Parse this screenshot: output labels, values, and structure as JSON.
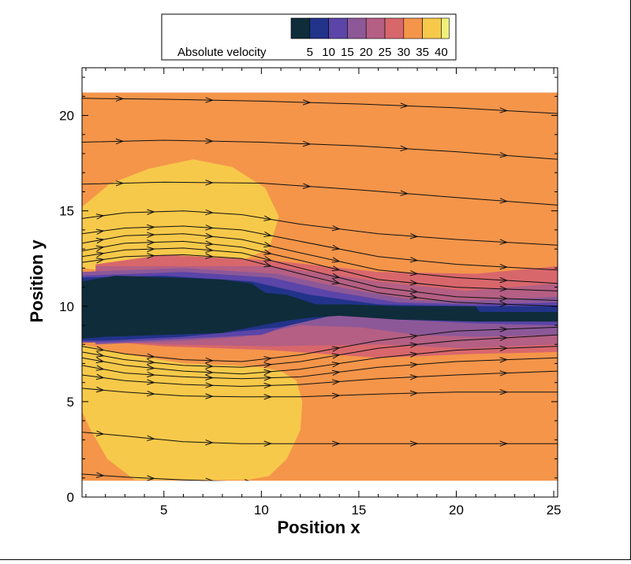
{
  "chart_data": {
    "type": "contour",
    "xlabel": "Position x",
    "ylabel": "Position y",
    "xlim": [
      0.8,
      25.2
    ],
    "ylim": [
      0,
      22.5
    ],
    "xticks": [
      5,
      10,
      15,
      20,
      25
    ],
    "yticks": [
      0,
      5,
      10,
      15,
      20
    ],
    "field_extent": {
      "x": [
        0.8,
        25.2
      ],
      "y": [
        0.85,
        21.2
      ]
    },
    "colorbar": {
      "title": "Absolute velocity",
      "tick_labels": [
        "5",
        "10",
        "15",
        "20",
        "25",
        "30",
        "35",
        "40"
      ],
      "colors": [
        "#0f2c3b",
        "#22338a",
        "#5b45a8",
        "#8d5898",
        "#b45f83",
        "#d8676c",
        "#f4954a",
        "#f7c94a",
        "#eef07a"
      ]
    },
    "regions": [
      {
        "level": "30-35",
        "color": "#f4954a",
        "polygon": [
          [
            0.8,
            0.85
          ],
          [
            25.2,
            0.85
          ],
          [
            25.2,
            21.2
          ],
          [
            0.8,
            21.2
          ]
        ]
      },
      {
        "level": "35-40",
        "color": "#f7c94a",
        "polygon": [
          [
            0.8,
            15.2
          ],
          [
            2.2,
            16.4
          ],
          [
            4.2,
            17.2
          ],
          [
            6.5,
            17.7
          ],
          [
            8.5,
            17.3
          ],
          [
            10.2,
            16.2
          ],
          [
            10.9,
            14.7
          ],
          [
            10.4,
            13
          ],
          [
            8.5,
            12.2
          ],
          [
            5,
            11.8
          ],
          [
            2.5,
            11.8
          ],
          [
            0.8,
            12
          ]
        ]
      },
      {
        "level": "35-40",
        "color": "#f7c94a",
        "polygon": [
          [
            0.8,
            8
          ],
          [
            3,
            7.5
          ],
          [
            6,
            7
          ],
          [
            8.5,
            6.9
          ],
          [
            10,
            6.8
          ],
          [
            11,
            6.6
          ],
          [
            11.8,
            6.1
          ],
          [
            12.1,
            5
          ],
          [
            12,
            3.5
          ],
          [
            11.3,
            2
          ],
          [
            10.4,
            1.1
          ],
          [
            9.3,
            0.9
          ],
          [
            3.5,
            0.9
          ],
          [
            2.1,
            2
          ],
          [
            1.2,
            3.6
          ],
          [
            0.8,
            4.5
          ]
        ]
      },
      {
        "level": "25-30",
        "color": "#d8676c",
        "polygon": [
          [
            5,
            12.7
          ],
          [
            10.5,
            12.4
          ],
          [
            16,
            11.8
          ],
          [
            21,
            11.7
          ],
          [
            25.2,
            12.1
          ],
          [
            25.2,
            7.6
          ],
          [
            21,
            7.5
          ],
          [
            16,
            7.3
          ],
          [
            10.5,
            7.7
          ],
          [
            5,
            7.9
          ],
          [
            1.5,
            8.2
          ],
          [
            1.5,
            12.2
          ]
        ]
      },
      {
        "level": "20-25",
        "color": "#b45f83",
        "polygon": [
          [
            1.5,
            12.1
          ],
          [
            10.5,
            12.1
          ],
          [
            16,
            11.3
          ],
          [
            20.5,
            10.8
          ],
          [
            25.2,
            11.2
          ],
          [
            25.2,
            8
          ],
          [
            20.5,
            7.8
          ],
          [
            16,
            8
          ],
          [
            10.5,
            7.9
          ],
          [
            5,
            8
          ],
          [
            1.5,
            8.2
          ]
        ]
      },
      {
        "level": "15-20",
        "color": "#8d5898",
        "polygon": [
          [
            0.8,
            11.8
          ],
          [
            6,
            12
          ],
          [
            10.8,
            11.7
          ],
          [
            14.5,
            10.9
          ],
          [
            18,
            10.3
          ],
          [
            21,
            10.3
          ],
          [
            25.2,
            10.5
          ],
          [
            25.2,
            8.5
          ],
          [
            21,
            8.4
          ],
          [
            18,
            8.5
          ],
          [
            15,
            8.9
          ],
          [
            12,
            9
          ],
          [
            9,
            8.4
          ],
          [
            6,
            8.2
          ],
          [
            1.5,
            8
          ]
        ]
      },
      {
        "level": "10-15",
        "color": "#5b45a8",
        "polygon": [
          [
            0.8,
            11.6
          ],
          [
            6,
            11.8
          ],
          [
            10.5,
            11.5
          ],
          [
            13.5,
            10.8
          ],
          [
            17,
            10.2
          ],
          [
            21,
            10.1
          ],
          [
            25.2,
            10.2
          ],
          [
            25.2,
            9
          ],
          [
            21,
            9.1
          ],
          [
            17,
            9.3
          ],
          [
            14,
            9.6
          ],
          [
            12,
            9.2
          ],
          [
            10,
            8.5
          ],
          [
            6,
            8.3
          ],
          [
            2,
            8.1
          ],
          [
            0.8,
            8.1
          ]
        ]
      },
      {
        "level": "5-10",
        "color": "#22338a",
        "polygon": [
          [
            0.8,
            11.5
          ],
          [
            5,
            11.6
          ],
          [
            9.5,
            11.3
          ],
          [
            12.5,
            10.6
          ],
          [
            16,
            10.1
          ],
          [
            21,
            10.0
          ],
          [
            25.2,
            10.0
          ],
          [
            25.2,
            9.2
          ],
          [
            21,
            9.3
          ],
          [
            17,
            9.4
          ],
          [
            14,
            9.6
          ],
          [
            11,
            8.9
          ],
          [
            6,
            8.4
          ],
          [
            2,
            8.2
          ],
          [
            0.8,
            8.2
          ]
        ]
      },
      {
        "level": "0-5",
        "color": "#0f2c3b",
        "polygon": [
          [
            0.8,
            11.3
          ],
          [
            2.5,
            11.6
          ],
          [
            5.5,
            11.5
          ],
          [
            8,
            11.4
          ],
          [
            9.5,
            11.2
          ],
          [
            10.2,
            10.7
          ],
          [
            11.3,
            10.6
          ],
          [
            12.2,
            10.3
          ],
          [
            12.8,
            10.1
          ],
          [
            14.5,
            10.1
          ],
          [
            17,
            10.0
          ],
          [
            21,
            10.0
          ],
          [
            21.2,
            9.7
          ],
          [
            25.2,
            9.7
          ],
          [
            25.2,
            9.2
          ],
          [
            21,
            9.2
          ],
          [
            17,
            9.3
          ],
          [
            14,
            9.5
          ],
          [
            12.5,
            9.4
          ],
          [
            11,
            9.2
          ],
          [
            9.5,
            8.9
          ],
          [
            8,
            8.6
          ],
          [
            5,
            8.5
          ],
          [
            2,
            8.4
          ],
          [
            0.8,
            8.3
          ]
        ]
      }
    ],
    "streamlines": [
      {
        "points": [
          [
            0.8,
            20.9
          ],
          [
            5,
            20.85
          ],
          [
            10,
            20.75
          ],
          [
            15,
            20.6
          ],
          [
            20,
            20.4
          ],
          [
            25.2,
            20.1
          ]
        ]
      },
      {
        "points": [
          [
            0.8,
            18.6
          ],
          [
            5,
            18.7
          ],
          [
            10,
            18.6
          ],
          [
            15,
            18.4
          ],
          [
            20,
            18.1
          ],
          [
            25.2,
            17.7
          ]
        ]
      },
      {
        "points": [
          [
            0.8,
            16.4
          ],
          [
            5,
            16.5
          ],
          [
            10,
            16.45
          ],
          [
            15,
            16.1
          ],
          [
            20,
            15.7
          ],
          [
            25.2,
            15.3
          ]
        ]
      },
      {
        "points": [
          [
            0.8,
            14.6
          ],
          [
            3,
            14.9
          ],
          [
            6,
            15.0
          ],
          [
            9,
            14.8
          ],
          [
            12,
            14.3
          ],
          [
            16,
            13.8
          ],
          [
            20,
            13.5
          ],
          [
            25.2,
            13.2
          ]
        ]
      },
      {
        "points": [
          [
            0.8,
            13.8
          ],
          [
            3,
            14.1
          ],
          [
            6,
            14.2
          ],
          [
            9,
            14.0
          ],
          [
            12,
            13.4
          ],
          [
            16,
            12.6
          ],
          [
            20,
            12.2
          ],
          [
            25.2,
            11.9
          ]
        ]
      },
      {
        "points": [
          [
            0.8,
            13.3
          ],
          [
            3,
            13.7
          ],
          [
            6,
            13.8
          ],
          [
            9,
            13.5
          ],
          [
            12,
            12.8
          ],
          [
            16,
            11.9
          ],
          [
            20,
            11.5
          ],
          [
            25.2,
            11.2
          ]
        ]
      },
      {
        "points": [
          [
            0.8,
            12.9
          ],
          [
            3,
            13.3
          ],
          [
            6,
            13.4
          ],
          [
            9,
            13.1
          ],
          [
            12,
            12.4
          ],
          [
            16,
            11.4
          ],
          [
            20,
            11.0
          ],
          [
            25.2,
            10.8
          ]
        ]
      },
      {
        "points": [
          [
            0.8,
            12.6
          ],
          [
            3,
            12.95
          ],
          [
            6,
            13.05
          ],
          [
            9,
            12.8
          ],
          [
            12,
            12.0
          ],
          [
            16,
            11.0
          ],
          [
            20,
            10.5
          ],
          [
            25.2,
            10.3
          ]
        ]
      },
      {
        "points": [
          [
            0.8,
            12.3
          ],
          [
            3,
            12.6
          ],
          [
            6,
            12.7
          ],
          [
            9,
            12.5
          ],
          [
            12,
            11.7
          ],
          [
            16,
            10.7
          ],
          [
            20,
            10.2
          ],
          [
            25.2,
            10.0
          ]
        ]
      },
      {
        "points": [
          [
            0.8,
            7.9
          ],
          [
            3,
            7.5
          ],
          [
            6,
            7.2
          ],
          [
            9,
            7.1
          ],
          [
            12,
            7.45
          ],
          [
            16,
            8.2
          ],
          [
            20,
            8.7
          ],
          [
            25.2,
            8.9
          ]
        ]
      },
      {
        "points": [
          [
            0.8,
            7.6
          ],
          [
            3,
            7.2
          ],
          [
            6,
            6.9
          ],
          [
            9,
            6.8
          ],
          [
            12,
            7.1
          ],
          [
            16,
            7.8
          ],
          [
            20,
            8.2
          ],
          [
            25.2,
            8.5
          ]
        ]
      },
      {
        "points": [
          [
            0.8,
            7.3
          ],
          [
            3,
            6.9
          ],
          [
            6,
            6.6
          ],
          [
            9,
            6.45
          ],
          [
            12,
            6.7
          ],
          [
            16,
            7.3
          ],
          [
            20,
            7.7
          ],
          [
            25.2,
            7.9
          ]
        ]
      },
      {
        "points": [
          [
            0.8,
            6.9
          ],
          [
            3,
            6.5
          ],
          [
            6,
            6.3
          ],
          [
            9,
            6.2
          ],
          [
            12,
            6.3
          ],
          [
            16,
            6.8
          ],
          [
            20,
            7.1
          ],
          [
            25.2,
            7.3
          ]
        ]
      },
      {
        "points": [
          [
            0.8,
            6.4
          ],
          [
            3,
            6.1
          ],
          [
            6,
            5.9
          ],
          [
            9,
            5.8
          ],
          [
            12,
            5.9
          ],
          [
            16,
            6.2
          ],
          [
            20,
            6.4
          ],
          [
            25.2,
            6.6
          ]
        ]
      },
      {
        "points": [
          [
            0.8,
            5.7
          ],
          [
            3,
            5.5
          ],
          [
            6,
            5.3
          ],
          [
            9,
            5.25
          ],
          [
            12,
            5.25
          ],
          [
            16,
            5.4
          ],
          [
            20,
            5.5
          ],
          [
            25.2,
            5.5
          ]
        ]
      },
      {
        "points": [
          [
            0.8,
            3.4
          ],
          [
            3,
            3.2
          ],
          [
            6,
            2.9
          ],
          [
            9,
            2.8
          ],
          [
            12,
            2.8
          ],
          [
            16,
            2.8
          ],
          [
            20,
            2.8
          ],
          [
            25.2,
            2.8
          ]
        ]
      },
      {
        "points": [
          [
            0.8,
            1.2
          ],
          [
            3,
            1.05
          ],
          [
            6,
            0.9
          ],
          [
            9,
            0.8
          ],
          [
            10,
            0.75
          ]
        ]
      }
    ]
  }
}
